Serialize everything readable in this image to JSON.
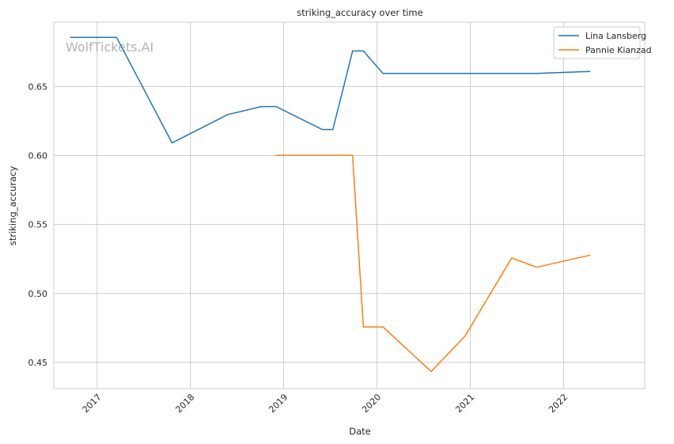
{
  "chart_data": {
    "type": "line",
    "title": "striking_accuracy over time",
    "xlabel": "Date",
    "ylabel": "striking_accuracy",
    "watermark": "WolfTickets.AI",
    "x_ticks": [
      "2017",
      "2018",
      "2019",
      "2020",
      "2021",
      "2022"
    ],
    "y_ticks": [
      "0.45",
      "0.50",
      "0.55",
      "0.60",
      "0.65"
    ],
    "xlim": [
      "2016-07-15",
      "2022-11-15"
    ],
    "ylim": [
      0.431,
      0.6967
    ],
    "grid": true,
    "legend_position": "top-right",
    "series": [
      {
        "name": "Lina Lansberg",
        "color": "#1f77b4",
        "points": [
          [
            "2016-09-17",
            0.6857
          ],
          [
            "2017-03-18",
            0.6857
          ],
          [
            "2017-10-21",
            0.6091
          ],
          [
            "2018-05-27",
            0.6297
          ],
          [
            "2018-10-06",
            0.6355
          ],
          [
            "2018-12-02",
            0.6355
          ],
          [
            "2019-06-01",
            0.6189
          ],
          [
            "2019-07-13",
            0.6189
          ],
          [
            "2019-09-28",
            0.6758
          ],
          [
            "2019-11-09",
            0.6758
          ],
          [
            "2020-01-25",
            0.6595
          ],
          [
            "2021-09-18",
            0.6595
          ],
          [
            "2022-04-16",
            0.661
          ]
        ]
      },
      {
        "name": "Pannie Kianzad",
        "color": "#ff7f0e",
        "points": [
          [
            "2018-12-02",
            0.6001
          ],
          [
            "2019-09-28",
            0.6001
          ],
          [
            "2019-11-09",
            0.4757
          ],
          [
            "2020-01-25",
            0.4757
          ],
          [
            "2020-08-01",
            0.4434
          ],
          [
            "2020-12-12",
            0.4693
          ],
          [
            "2021-06-12",
            0.5257
          ],
          [
            "2021-09-18",
            0.519
          ],
          [
            "2022-04-16",
            0.5278
          ]
        ]
      }
    ]
  }
}
